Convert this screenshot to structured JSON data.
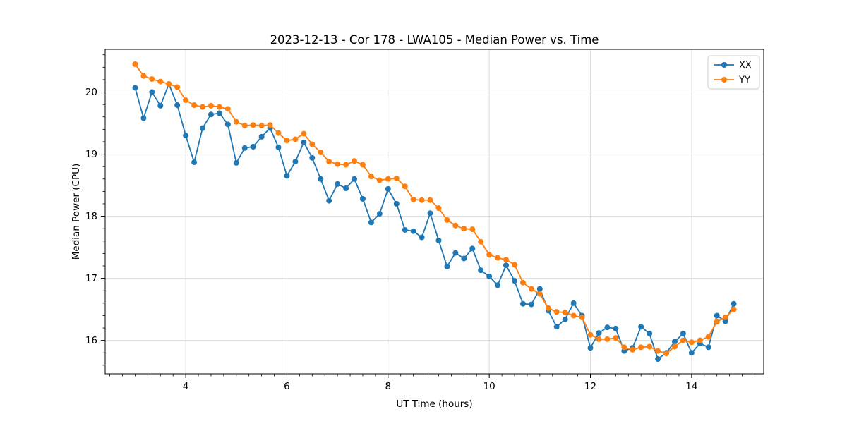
{
  "figure": {
    "title": "2023-12-13 - Cor 178 - LWA105 - Median Power vs. Time",
    "xlabel": "UT Time (hours)",
    "ylabel": "Median Power (CPU)"
  },
  "legend": {
    "position": "upper right",
    "items": [
      {
        "label": "XX",
        "color": "#1f77b4"
      },
      {
        "label": "YY",
        "color": "#ff7f0e"
      }
    ]
  },
  "chart_data": {
    "type": "line",
    "title": "2023-12-13 - Cor 178 - LWA105 - Median Power vs. Time",
    "xlabel": "UT Time (hours)",
    "ylabel": "Median Power (CPU)",
    "grid": true,
    "legend_position": "upper right",
    "marker": "circle",
    "xlim": [
      2.408,
      15.425
    ],
    "ylim": [
      15.462,
      20.688
    ],
    "xticks": [
      4,
      6,
      8,
      10,
      12,
      14
    ],
    "yticks": [
      16,
      17,
      18,
      19,
      20
    ],
    "x_minor_step": 0.25,
    "y_minor_step": 0.2,
    "x": [
      3.0,
      3.167,
      3.333,
      3.5,
      3.667,
      3.833,
      4.0,
      4.167,
      4.333,
      4.5,
      4.667,
      4.833,
      5.0,
      5.167,
      5.333,
      5.5,
      5.667,
      5.833,
      6.0,
      6.167,
      6.333,
      6.5,
      6.667,
      6.833,
      7.0,
      7.167,
      7.333,
      7.5,
      7.667,
      7.833,
      8.0,
      8.167,
      8.333,
      8.5,
      8.667,
      8.833,
      9.0,
      9.167,
      9.333,
      9.5,
      9.667,
      9.833,
      10.0,
      10.167,
      10.333,
      10.5,
      10.667,
      10.833,
      11.0,
      11.167,
      11.333,
      11.5,
      11.667,
      11.833,
      12.0,
      12.167,
      12.333,
      12.5,
      12.667,
      12.833,
      13.0,
      13.167,
      13.333,
      13.5,
      13.667,
      13.833,
      14.0,
      14.167,
      14.333,
      14.5,
      14.667,
      14.833
    ],
    "series": [
      {
        "name": "XX",
        "color": "#1f77b4",
        "values": [
          20.07,
          19.58,
          20.0,
          19.78,
          20.13,
          19.79,
          19.3,
          18.87,
          19.42,
          19.64,
          19.66,
          19.48,
          18.86,
          19.1,
          19.12,
          19.28,
          19.42,
          19.11,
          18.65,
          18.88,
          19.19,
          18.94,
          18.6,
          18.25,
          18.52,
          18.45,
          18.6,
          18.28,
          17.9,
          18.04,
          18.44,
          18.2,
          17.78,
          17.76,
          17.66,
          18.05,
          17.61,
          17.19,
          17.41,
          17.32,
          17.48,
          17.13,
          17.03,
          16.89,
          17.21,
          16.96,
          16.59,
          16.58,
          16.83,
          16.48,
          16.22,
          16.34,
          16.6,
          16.4,
          15.88,
          16.12,
          16.21,
          16.19,
          15.83,
          15.88,
          16.22,
          16.11,
          15.7,
          15.8,
          15.98,
          16.11,
          15.8,
          15.95,
          15.89,
          16.4,
          16.31,
          16.59
        ]
      },
      {
        "name": "YY",
        "color": "#ff7f0e",
        "values": [
          20.45,
          20.26,
          20.21,
          20.17,
          20.13,
          20.08,
          19.87,
          19.79,
          19.76,
          19.78,
          19.76,
          19.73,
          19.52,
          19.46,
          19.47,
          19.46,
          19.47,
          19.34,
          19.22,
          19.24,
          19.33,
          19.16,
          19.03,
          18.88,
          18.84,
          18.83,
          18.89,
          18.83,
          18.64,
          18.58,
          18.6,
          18.61,
          18.48,
          18.27,
          18.26,
          18.26,
          18.13,
          17.94,
          17.85,
          17.8,
          17.79,
          17.59,
          17.38,
          17.33,
          17.3,
          17.22,
          16.93,
          16.83,
          16.75,
          16.52,
          16.46,
          16.45,
          16.4,
          16.37,
          16.09,
          16.02,
          16.02,
          16.04,
          15.89,
          15.85,
          15.89,
          15.9,
          15.83,
          15.79,
          15.9,
          16.0,
          15.97,
          16.0,
          16.06,
          16.3,
          16.37,
          16.5
        ]
      }
    ],
    "colors": {
      "grid": "#dcdcdc",
      "spine": "#000000",
      "background": "#ffffff"
    }
  }
}
